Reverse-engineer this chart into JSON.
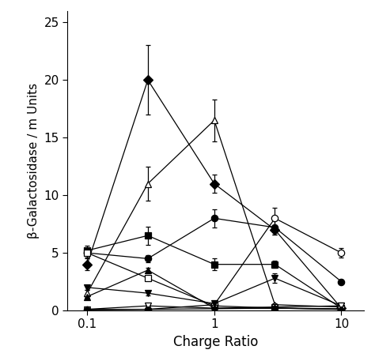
{
  "x": [
    0.1,
    0.3,
    1.0,
    3.0,
    10.0
  ],
  "series": [
    {
      "label": "filled_diamond",
      "marker": "D",
      "fillstyle": "full",
      "color": "black",
      "y": [
        4.0,
        20.0,
        11.0,
        7.0,
        0.2
      ],
      "yerr": [
        0.5,
        3.0,
        0.8,
        0.4,
        0.1
      ]
    },
    {
      "label": "open_triangle_up",
      "marker": "^",
      "fillstyle": "none",
      "color": "black",
      "y": [
        1.5,
        11.0,
        16.5,
        0.5,
        0.3
      ],
      "yerr": [
        0.3,
        1.5,
        1.8,
        0.1,
        0.05
      ]
    },
    {
      "label": "filled_circle",
      "marker": "o",
      "fillstyle": "full",
      "color": "black",
      "y": [
        5.0,
        4.5,
        8.0,
        7.2,
        2.5
      ],
      "yerr": [
        0.4,
        0.3,
        0.8,
        0.6,
        0.2
      ]
    },
    {
      "label": "open_circle",
      "marker": "o",
      "fillstyle": "none",
      "color": "black",
      "y": [
        0.1,
        0.1,
        0.5,
        8.0,
        5.0
      ],
      "yerr": [
        0.05,
        0.05,
        0.1,
        0.9,
        0.4
      ]
    },
    {
      "label": "filled_square",
      "marker": "s",
      "fillstyle": "full",
      "color": "black",
      "y": [
        5.2,
        6.5,
        4.0,
        4.0,
        0.2
      ],
      "yerr": [
        0.4,
        0.8,
        0.5,
        0.3,
        0.05
      ]
    },
    {
      "label": "open_square",
      "marker": "s",
      "fillstyle": "none",
      "color": "black",
      "y": [
        5.0,
        2.8,
        0.4,
        0.2,
        0.15
      ],
      "yerr": [
        0.3,
        0.2,
        0.05,
        0.03,
        0.02
      ]
    },
    {
      "label": "filled_triangle_down",
      "marker": "v",
      "fillstyle": "full",
      "color": "black",
      "y": [
        2.0,
        1.5,
        0.6,
        2.8,
        0.4
      ],
      "yerr": [
        0.2,
        0.2,
        0.1,
        0.4,
        0.05
      ]
    },
    {
      "label": "open_triangle_down",
      "marker": "v",
      "fillstyle": "none",
      "color": "black",
      "y": [
        0.1,
        0.4,
        0.2,
        0.3,
        0.4
      ],
      "yerr": [
        0.02,
        0.05,
        0.03,
        0.04,
        0.05
      ]
    },
    {
      "label": "filled_triangle_up_small",
      "marker": "^",
      "fillstyle": "full",
      "color": "black",
      "y": [
        1.2,
        3.5,
        0.2,
        0.2,
        0.1
      ],
      "yerr": [
        0.1,
        0.2,
        0.03,
        0.03,
        0.02
      ]
    },
    {
      "label": "filled_pentagon",
      "marker": "p",
      "fillstyle": "full",
      "color": "black",
      "y": [
        0.05,
        0.1,
        0.15,
        0.2,
        0.1
      ],
      "yerr": [
        0.01,
        0.02,
        0.02,
        0.03,
        0.02
      ]
    }
  ],
  "xlabel": "Charge Ratio",
  "ylabel": "β-Galactosidase / m Units",
  "xlim": [
    0.07,
    15.0
  ],
  "ylim": [
    0,
    26
  ],
  "yticks": [
    0,
    5,
    10,
    15,
    20,
    25
  ],
  "xticks": [
    0.1,
    1.0,
    10.0
  ],
  "xticklabels": [
    "0.1",
    "1",
    "10"
  ],
  "background_color": "#ffffff"
}
